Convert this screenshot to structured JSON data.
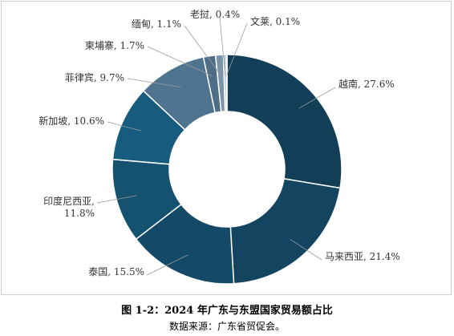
{
  "chart_data": {
    "type": "pie",
    "donut": true,
    "unit": "%",
    "categories": [
      "越南",
      "马来西亚",
      "泰国",
      "印度尼西亚",
      "新加坡",
      "菲律宾",
      "柬埔寨",
      "缅甸",
      "老挝",
      "文莱"
    ],
    "values": [
      27.6,
      21.4,
      15.5,
      11.8,
      10.6,
      9.7,
      1.7,
      1.1,
      0.4,
      0.1
    ],
    "labels": [
      [
        "越南, 27.6%"
      ],
      [
        "马来西亚, 21.4%"
      ],
      [
        "泰国, 15.5%"
      ],
      [
        "印度尼西亚,",
        "11.8%"
      ],
      [
        "新加坡, 10.6%"
      ],
      [
        "菲律宾, 9.7%"
      ],
      [
        "柬埔寨, 1.7%"
      ],
      [
        "缅甸, 1.1%"
      ],
      [
        "老挝, 0.4%"
      ],
      [
        "文莱, 0.1%"
      ]
    ],
    "colors": [
      "#123f57",
      "#134460",
      "#144a68",
      "#155270",
      "#175b7f",
      "#4f7490",
      "#4e6e88",
      "#7b94a8",
      "#a9bac8",
      "#d5dee6"
    ],
    "legend": "none"
  },
  "caption": {
    "title": "图 1-2：2024 年广东与东盟国家贸易额占比",
    "source": "数据来源：广东省贸促会。"
  }
}
